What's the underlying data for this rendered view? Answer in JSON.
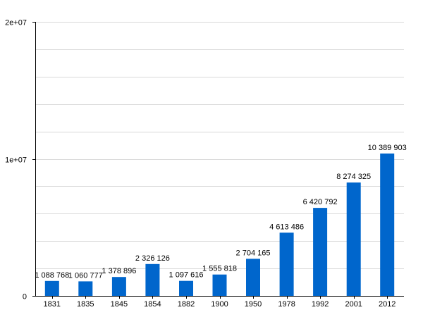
{
  "chart_data": {
    "type": "bar",
    "categories": [
      "1831",
      "1835",
      "1845",
      "1854",
      "1882",
      "1900",
      "1950",
      "1978",
      "1992",
      "2001",
      "2012"
    ],
    "values": [
      1088768,
      1060777,
      1378896,
      2326126,
      1097616,
      1555818,
      2704165,
      4613486,
      6420792,
      8274325,
      10389903
    ],
    "value_labels": [
      "1 088 768",
      "1 060 777",
      "1 378 896",
      "2 326 126",
      "1 097 616",
      "1 555 818",
      "2 704 165",
      "4 613 486",
      "6 420 792",
      "8 274 325",
      "10 389 903"
    ],
    "title": "",
    "xlabel": "",
    "ylabel": "",
    "ylim": [
      0,
      20000000
    ],
    "y_ticks": [
      0,
      10000000,
      20000000
    ],
    "y_tick_labels": [
      "0",
      "1e+07",
      "2e+07"
    ],
    "grid_step": 2000000,
    "grid": true,
    "bar_color": "#0066cc"
  }
}
